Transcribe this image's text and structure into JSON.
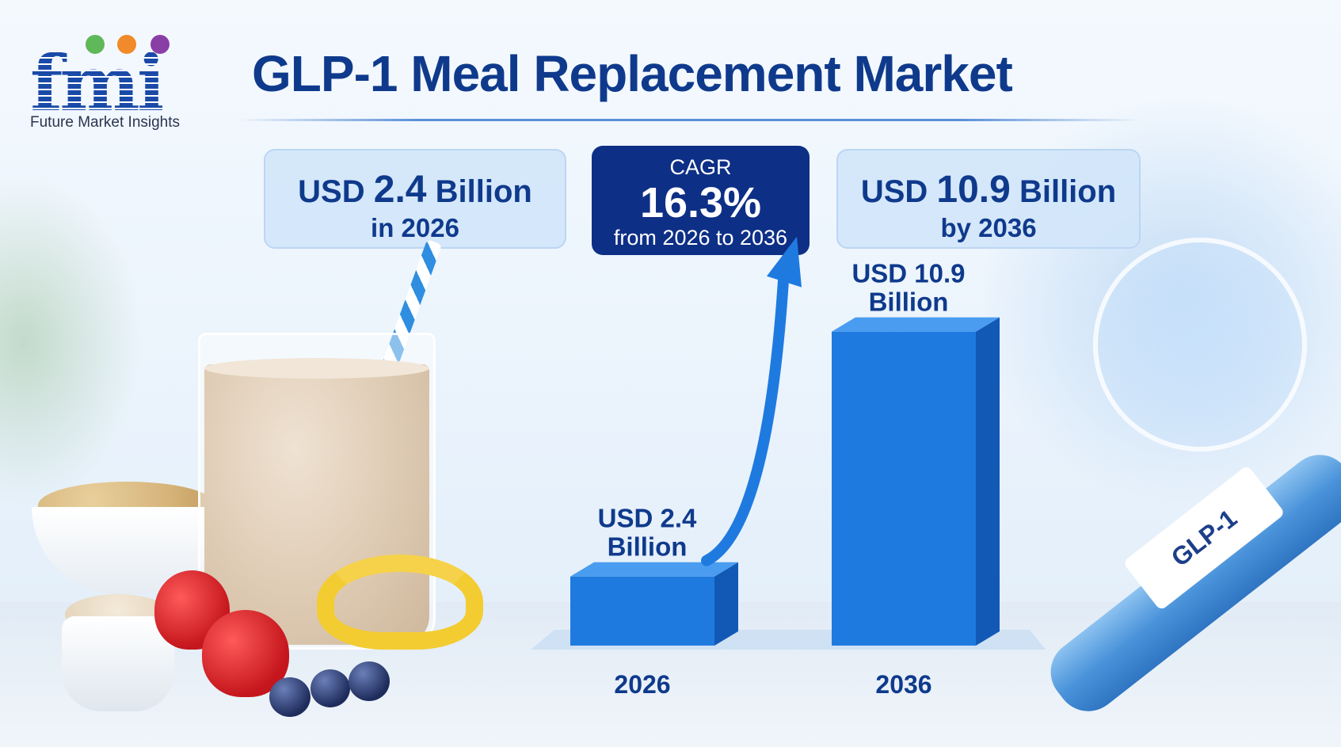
{
  "brand": {
    "logo_text": "fmi",
    "tagline": "Future Market Insights",
    "dot_colors": [
      "#5fb85a",
      "#f08a2a",
      "#8a3fa6"
    ]
  },
  "title": "GLP-1 Meal Replacement Market",
  "stats": {
    "left": {
      "prefix": "USD",
      "value": "2.4",
      "suffix": "Billion",
      "line2": "in 2026"
    },
    "center": {
      "label": "CAGR",
      "value": "16.3%",
      "range": "from 2026 to 2036"
    },
    "right": {
      "prefix": "USD",
      "value": "10.9",
      "suffix": "Billion",
      "line2": "by 2036"
    }
  },
  "chart_data": {
    "type": "bar",
    "categories": [
      "2026",
      "2036"
    ],
    "values": [
      2.4,
      10.9
    ],
    "unit": "USD Billion",
    "data_labels": [
      "USD 2.4 Billion",
      "USD 10.9 Billion"
    ],
    "ylim": [
      0,
      11
    ],
    "grid": false,
    "colors": {
      "bar_front": "#1f7ae0",
      "bar_side": "#1259b6",
      "bar_top": "#4a9cf0",
      "arrow": "#1f7ae0",
      "label": "#0f3a8c"
    }
  },
  "pen_label": "GLP-1",
  "colors": {
    "navy": "#0d2f86",
    "title": "#0f3a8c"
  }
}
